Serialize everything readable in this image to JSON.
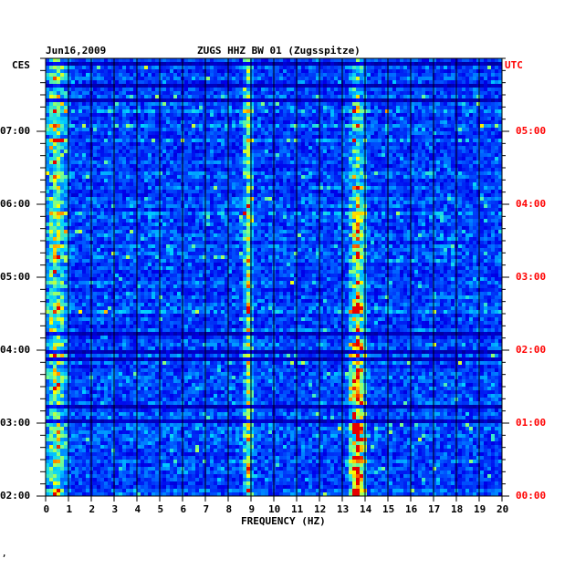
{
  "chart_data": {
    "type": "heatmap",
    "date": "Jun16,2009",
    "title": "ZUGS HHZ BW 01 (Zugsspitze)",
    "left_tz": "CES",
    "right_tz": "UTC",
    "xlabel": "FREQUENCY (HZ)",
    "xlim": [
      0,
      20
    ],
    "x_ticks": [
      "0",
      "1",
      "2",
      "3",
      "4",
      "5",
      "6",
      "7",
      "8",
      "9",
      "10",
      "11",
      "12",
      "13",
      "14",
      "15",
      "16",
      "17",
      "18",
      "19",
      "20"
    ],
    "left_time_ticks": [
      "07:00",
      "06:00",
      "05:00",
      "04:00",
      "03:00",
      "02:00"
    ],
    "right_time_ticks": [
      "05:00",
      "04:00",
      "03:00",
      "02:00",
      "01:00",
      "00:00"
    ],
    "time_range_utc": [
      "00:00",
      "06:00"
    ],
    "colors": {
      "background": "#000099",
      "low": "#0000ff",
      "mid": "#00ffff",
      "high": "#ffff00",
      "peak": "#ff0000",
      "grid": "#000000",
      "right_axis": "#ff0000"
    },
    "energy_bands_hz": [
      {
        "center": 13.6,
        "width": 0.5,
        "intensity": 0.9
      },
      {
        "center": 8.8,
        "width": 0.3,
        "intensity": 0.55
      },
      {
        "center": 0.4,
        "width": 0.6,
        "intensity": 0.6
      }
    ]
  },
  "footer_mark": "‚"
}
